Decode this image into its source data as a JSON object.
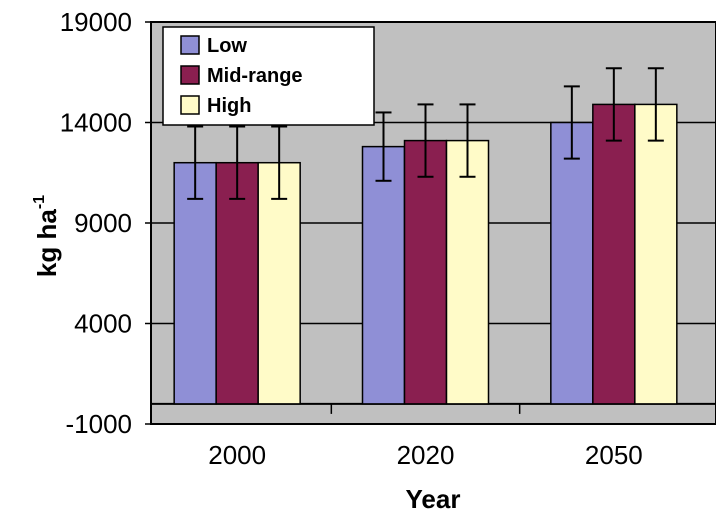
{
  "chart_data": {
    "type": "bar",
    "categories": [
      "2000",
      "2020",
      "2050"
    ],
    "series": [
      {
        "name": "Low",
        "color": "#8f8fd6",
        "values": [
          12000,
          12800,
          14000
        ],
        "errors": [
          1800,
          1700,
          1800
        ]
      },
      {
        "name": "Mid-range",
        "color": "#8a1f50",
        "values": [
          12000,
          13100,
          14900
        ],
        "errors": [
          1800,
          1800,
          1800
        ]
      },
      {
        "name": "High",
        "color": "#fffbc8",
        "values": [
          12000,
          13100,
          14900
        ],
        "errors": [
          1800,
          1800,
          1800
        ]
      }
    ],
    "xlabel": "Year",
    "ylabel": "kg ha",
    "ylabel_superscript": "-1",
    "ylim": [
      -1000,
      19000
    ],
    "yticks": [
      "19000",
      "14000",
      "9000",
      "4000",
      "-1000"
    ],
    "ytick_values": [
      19000,
      14000,
      9000,
      4000,
      -1000
    ],
    "grid": true,
    "legend_position": "top-left",
    "plot_background": "#c0c0c0"
  }
}
